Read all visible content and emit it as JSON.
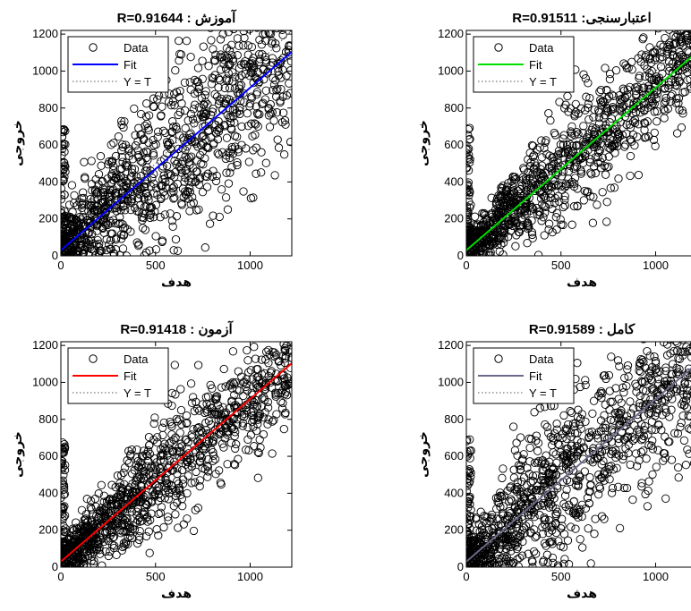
{
  "chart_data": [
    {
      "type": "scatter",
      "title": "R=0.91644 : آموزش",
      "xlabel": "هدف",
      "ylabel": "خروجی",
      "xlim": [
        0,
        1220
      ],
      "ylim": [
        0,
        1220
      ],
      "xticks": [
        "0",
        "500",
        "1000"
      ],
      "yticks": [
        "0",
        "200",
        "400",
        "600",
        "800",
        "1000",
        "1200"
      ],
      "grid": false,
      "legend_position": "top-left",
      "fit_color": "#0000ff",
      "series": [
        {
          "name": "Data",
          "marker": "circle",
          "spread": 230
        },
        {
          "name": "Fit",
          "slope": 0.88,
          "intercept": 30
        },
        {
          "name": "Y = T",
          "slope": 1,
          "intercept": 0
        }
      ]
    },
    {
      "type": "scatter",
      "title": "R=0.91511 :اعتبارسنجی",
      "xlabel": "هدف",
      "ylabel": "خروجی",
      "xlim": [
        0,
        1220
      ],
      "ylim": [
        0,
        1220
      ],
      "xticks": [
        "0",
        "500",
        "1000"
      ],
      "yticks": [
        "0",
        "200",
        "400",
        "600",
        "800",
        "1000",
        "1200"
      ],
      "grid": false,
      "legend_position": "top-left",
      "fit_color": "#00e000",
      "series": [
        {
          "name": "Data",
          "marker": "circle",
          "spread": 150
        },
        {
          "name": "Fit",
          "slope": 0.88,
          "intercept": 30
        },
        {
          "name": "Y = T",
          "slope": 1,
          "intercept": 0
        }
      ]
    },
    {
      "type": "scatter",
      "title": "R=0.91418 : آزمون",
      "xlabel": "هدف",
      "ylabel": "خروجی",
      "xlim": [
        0,
        1220
      ],
      "ylim": [
        0,
        1220
      ],
      "xticks": [
        "0",
        "500",
        "1000"
      ],
      "yticks": [
        "0",
        "200",
        "400",
        "600",
        "800",
        "1000",
        "1200"
      ],
      "grid": false,
      "legend_position": "top-left",
      "fit_color": "#ff0000",
      "series": [
        {
          "name": "Data",
          "marker": "circle",
          "spread": 150
        },
        {
          "name": "Fit",
          "slope": 0.88,
          "intercept": 30
        },
        {
          "name": "Y = T",
          "slope": 1,
          "intercept": 0
        }
      ]
    },
    {
      "type": "scatter",
      "title": "R=0.91589 : کامل",
      "xlabel": "هدف",
      "ylabel": "خروجی",
      "xlim": [
        0,
        1220
      ],
      "ylim": [
        0,
        1220
      ],
      "xticks": [
        "0",
        "500",
        "1000"
      ],
      "yticks": [
        "0",
        "200",
        "400",
        "600",
        "800",
        "1000",
        "1200"
      ],
      "grid": false,
      "legend_position": "top-left",
      "fit_color": "#6a6a8a",
      "series": [
        {
          "name": "Data",
          "marker": "circle",
          "spread": 230
        },
        {
          "name": "Fit",
          "slope": 0.88,
          "intercept": 30
        },
        {
          "name": "Y = T",
          "slope": 1,
          "intercept": 0
        }
      ]
    }
  ]
}
